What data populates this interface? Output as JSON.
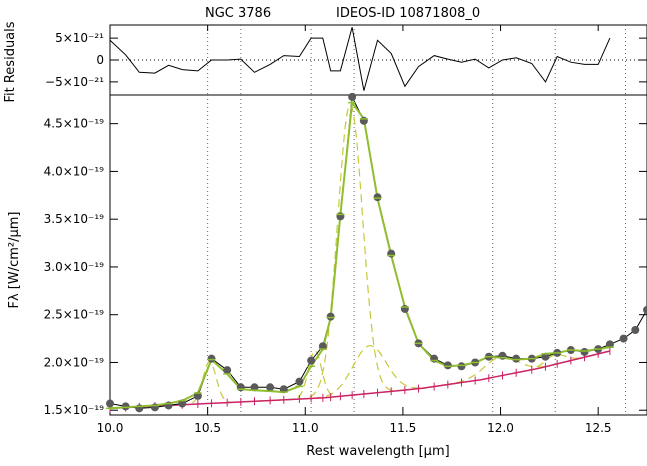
{
  "title_left": "NGC 3786",
  "title_right": "IDEOS-ID 10871808_0",
  "chart_data": [
    {
      "panel": "residuals",
      "type": "line",
      "ylabel": "Fit Residuals",
      "ylim": [
        -8e-21,
        8e-21
      ],
      "ytick_labels": [
        "5×10⁻²¹",
        "0",
        "−5×10⁻²¹"
      ],
      "ytick_values": [
        5e-21,
        0,
        -5e-21
      ],
      "zero_line": "dotted",
      "x": [
        10.0,
        10.08,
        10.15,
        10.23,
        10.3,
        10.37,
        10.45,
        10.52,
        10.6,
        10.67,
        10.74,
        10.82,
        10.89,
        10.97,
        11.03,
        11.09,
        11.13,
        11.18,
        11.24,
        11.3,
        11.37,
        11.44,
        11.51,
        11.58,
        11.66,
        11.73,
        11.8,
        11.87,
        11.94,
        12.01,
        12.08,
        12.16,
        12.23,
        12.29,
        12.36,
        12.43,
        12.5,
        12.56
      ],
      "y": [
        4.5e-21,
        1.2e-21,
        -2.8e-21,
        -3e-21,
        -1.2e-21,
        -2.2e-21,
        -2.5e-21,
        0.0,
        0.0,
        2e-22,
        -2.8e-21,
        -1e-21,
        1e-21,
        8e-22,
        5e-21,
        5e-21,
        -2.5e-21,
        -2.5e-21,
        7.5e-21,
        -7e-21,
        4.5e-21,
        1.5e-21,
        -6e-21,
        -1.5e-21,
        1e-21,
        2e-22,
        -5e-22,
        2e-22,
        -1.8e-21,
        0.0,
        5e-22,
        -8e-22,
        -5e-21,
        8e-22,
        -5e-22,
        -1e-21,
        -1e-21,
        5e-21
      ]
    },
    {
      "panel": "spectrum",
      "type": "line",
      "xlabel": "Rest wavelength [μm]",
      "ylabel": "Fλ [W/cm²/μm]",
      "xlim": [
        10.0,
        12.75
      ],
      "ylim": [
        1.45e-19,
        4.8e-19
      ],
      "xtick_labels": [
        "10.0",
        "10.5",
        "11.0",
        "11.5",
        "12.0",
        "12.5"
      ],
      "xtick_values": [
        10.0,
        10.5,
        11.0,
        11.5,
        12.0,
        12.5
      ],
      "ytick_labels": [
        "1.5×10⁻¹⁹",
        "2.0×10⁻¹⁹",
        "2.5×10⁻¹⁹",
        "3.0×10⁻¹⁹",
        "3.5×10⁻¹⁹",
        "4.0×10⁻¹⁹",
        "4.5×10⁻¹⁹"
      ],
      "ytick_values": [
        1.5e-19,
        2e-19,
        2.5e-19,
        3e-19,
        3.5e-19,
        4e-19,
        4.5e-19
      ],
      "vertical_dotted_lines": [
        10.5,
        10.67,
        11.03,
        11.25,
        11.96,
        12.28,
        12.64
      ],
      "grid": false,
      "colors": {
        "data": "#555555",
        "data_line": "#000000",
        "model": "#8fbf2f",
        "components": "#c8c83a",
        "continuum": "#cc2266"
      },
      "observed": {
        "x": [
          10.0,
          10.08,
          10.15,
          10.23,
          10.3,
          10.37,
          10.45,
          10.52,
          10.6,
          10.67,
          10.74,
          10.82,
          10.89,
          10.97,
          11.03,
          11.09,
          11.13,
          11.18,
          11.24,
          11.3,
          11.37,
          11.44,
          11.51,
          11.58,
          11.66,
          11.73,
          11.8,
          11.87,
          11.94,
          12.01,
          12.08,
          12.16,
          12.23,
          12.29,
          12.36,
          12.43,
          12.5,
          12.56,
          12.63,
          12.69,
          12.75
        ],
        "y": [
          1.57e-19,
          1.54e-19,
          1.52e-19,
          1.53e-19,
          1.55e-19,
          1.57e-19,
          1.65e-19,
          2.04e-19,
          1.92e-19,
          1.74e-19,
          1.74e-19,
          1.74e-19,
          1.72e-19,
          1.8e-19,
          2.02e-19,
          2.17e-19,
          2.48e-19,
          3.53e-19,
          4.78e-19,
          4.53e-19,
          3.73e-19,
          3.14e-19,
          2.56e-19,
          2.2e-19,
          2.04e-19,
          1.97e-19,
          1.96e-19,
          2e-19,
          2.06e-19,
          2.07e-19,
          2.04e-19,
          2.04e-19,
          2.06e-19,
          2.1e-19,
          2.13e-19,
          2.11e-19,
          2.14e-19,
          2.19e-19,
          2.25e-19,
          2.34e-19,
          2.55e-19
        ]
      },
      "model": {
        "x": [
          10.0,
          10.08,
          10.15,
          10.23,
          10.3,
          10.37,
          10.45,
          10.52,
          10.6,
          10.67,
          10.74,
          10.82,
          10.89,
          10.97,
          11.03,
          11.09,
          11.13,
          11.18,
          11.24,
          11.3,
          11.37,
          11.44,
          11.51,
          11.58,
          11.66,
          11.73,
          11.8,
          11.87,
          11.94,
          12.01,
          12.08,
          12.16,
          12.23,
          12.29,
          12.36,
          12.43,
          12.5,
          12.56
        ],
        "y": [
          1.52e-19,
          1.53e-19,
          1.54e-19,
          1.55e-19,
          1.57e-19,
          1.6e-19,
          1.68e-19,
          2.03e-19,
          1.88e-19,
          1.72e-19,
          1.71e-19,
          1.7e-19,
          1.69e-19,
          1.75e-19,
          1.96e-19,
          2.14e-19,
          2.47e-19,
          3.55e-19,
          4.72e-19,
          4.55e-19,
          3.72e-19,
          3.12e-19,
          2.58e-19,
          2.2e-19,
          2.02e-19,
          1.96e-19,
          1.97e-19,
          2e-19,
          2.06e-19,
          2.05e-19,
          2.03e-19,
          2.04e-19,
          2.09e-19,
          2.1e-19,
          2.13e-19,
          2.12e-19,
          2.14e-19,
          2.16e-19
        ]
      },
      "continuum": {
        "x": [
          10.0,
          10.1,
          10.2,
          10.3,
          10.4,
          10.5,
          10.6,
          10.7,
          10.8,
          10.9,
          11.0,
          11.1,
          11.2,
          11.3,
          11.4,
          11.5,
          11.6,
          11.7,
          11.8,
          11.9,
          12.0,
          12.1,
          12.2,
          12.3,
          12.4,
          12.5,
          12.56
        ],
        "y": [
          1.52e-19,
          1.53e-19,
          1.54e-19,
          1.55e-19,
          1.56e-19,
          1.57e-19,
          1.58e-19,
          1.59e-19,
          1.6e-19,
          1.61e-19,
          1.62e-19,
          1.63e-19,
          1.65e-19,
          1.67e-19,
          1.69e-19,
          1.71e-19,
          1.73e-19,
          1.76e-19,
          1.79e-19,
          1.82e-19,
          1.86e-19,
          1.9e-19,
          1.94e-19,
          1.99e-19,
          2.04e-19,
          2.09e-19,
          2.12e-19
        ]
      },
      "components": [
        {
          "center": 10.51,
          "fwhm": 0.08,
          "peak": 4.4e-20
        },
        {
          "center": 11.05,
          "fwhm": 0.08,
          "peak": 5e-20
        },
        {
          "center": 11.23,
          "fwhm": 0.15,
          "peak": 3.05e-19
        },
        {
          "center": 11.33,
          "fwhm": 0.2,
          "peak": 5e-20
        },
        {
          "center": 12.0,
          "fwhm": 0.2,
          "peak": 2e-20
        },
        {
          "center": 12.28,
          "fwhm": 0.12,
          "peak": 1e-20
        }
      ]
    }
  ]
}
